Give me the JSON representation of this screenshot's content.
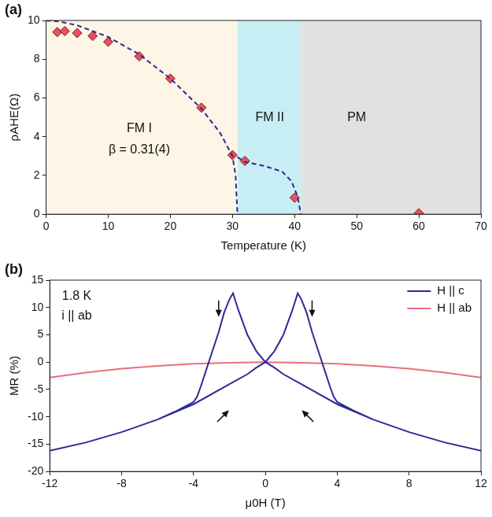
{
  "chart_data": [
    {
      "type": "scatter",
      "panel": "(a)",
      "x_label": "Temperature (K)",
      "y_label": "ρAHE(Ω)",
      "xlim": [
        0,
        70
      ],
      "xticks": [
        0,
        10,
        20,
        30,
        40,
        50,
        60,
        70
      ],
      "ylim": [
        0,
        10
      ],
      "yticks": [
        0,
        2,
        4,
        6,
        8,
        10
      ],
      "grid": false,
      "regions": [
        {
          "from": 0,
          "to": 30.8,
          "color": "#fdf5e6"
        },
        {
          "from": 30.8,
          "to": 41,
          "color": "#c8eef5"
        },
        {
          "from": 41,
          "to": 70,
          "color": "#e1e1e1"
        }
      ],
      "annotations": [
        {
          "text": "FM I",
          "x": 15,
          "y": 4.4
        },
        {
          "text": "β = 0.31(4)",
          "x": 15,
          "y": 3.3
        },
        {
          "text": "FM II",
          "x": 36,
          "y": 5
        },
        {
          "text": "PM",
          "x": 50,
          "y": 5
        }
      ],
      "series": [
        {
          "color": "#2d2a8c",
          "line_style": "dashed",
          "marker": "none",
          "x": [
            0,
            2,
            5,
            10,
            15,
            20,
            25,
            28,
            30,
            30.5,
            30.8
          ],
          "values": [
            10,
            9.95,
            9.75,
            9.15,
            8.25,
            7.0,
            5.45,
            4.2,
            3.0,
            2.0,
            0
          ]
        },
        {
          "color": "#2d2a8c",
          "line_style": "dashed",
          "marker": "none",
          "x": [
            30.8,
            32,
            35,
            38,
            39.5,
            40.5,
            41
          ],
          "values": [
            2.95,
            2.7,
            2.5,
            2.2,
            1.7,
            0.9,
            0
          ]
        },
        {
          "color": "#e8505b",
          "line_style": "none",
          "marker": "diamond",
          "x": [
            1.8,
            3,
            5,
            7.5,
            10,
            15,
            20,
            25,
            30,
            32,
            40,
            60
          ],
          "values": [
            9.4,
            9.45,
            9.35,
            9.2,
            8.9,
            8.15,
            7.0,
            5.5,
            3.05,
            2.75,
            0.85,
            0.05
          ]
        }
      ]
    },
    {
      "type": "line",
      "panel": "(b)",
      "x_label": "μ0H (T)",
      "y_label": "MR (%)",
      "xlim": [
        -12,
        12
      ],
      "xticks": [
        -12,
        -8,
        -4,
        0,
        4,
        8,
        12
      ],
      "ylim": [
        -20,
        15
      ],
      "yticks": [
        -20,
        -15,
        -10,
        -5,
        0,
        5,
        10,
        15
      ],
      "grid": false,
      "legend": "top-right",
      "annotations": [
        {
          "text": "1.8 K",
          "x": -10.5,
          "y": 12
        },
        {
          "text": "i || ab",
          "x": -10.5,
          "y": 8.5
        }
      ],
      "arrows": [
        {
          "x": -2.6,
          "y": 10,
          "direction": "down"
        },
        {
          "x": 2.6,
          "y": 10,
          "direction": "down"
        },
        {
          "x": -2.4,
          "y": -10,
          "direction": "up-right"
        },
        {
          "x": 2.4,
          "y": -10,
          "direction": "up-left"
        }
      ],
      "series": [
        {
          "name": "H || c",
          "color": "#2e2a96",
          "line_style": "solid",
          "marker": "none",
          "x": [
            12,
            10,
            8,
            6,
            4,
            2,
            1,
            0.5,
            0,
            -0.5,
            -1,
            -1.5,
            -1.8,
            -2,
            -2.3,
            -2.6,
            -3,
            -3.3,
            -3.6,
            -3.8,
            -4,
            -5,
            -6,
            -8,
            -10,
            -12,
            -10,
            -8,
            -6,
            -4,
            -2,
            -1,
            -0.5,
            0,
            0.5,
            1,
            1.5,
            1.8,
            2,
            2.3,
            2.6,
            3,
            3.3,
            3.6,
            3.8,
            4,
            5,
            6,
            8,
            10,
            12
          ],
          "values": [
            -16.2,
            -14.7,
            -12.8,
            -10.5,
            -7.7,
            -4,
            -2.2,
            -1,
            0,
            2,
            5,
            9.5,
            12.6,
            11.5,
            9,
            5.5,
            1.5,
            -1.5,
            -4.5,
            -6.3,
            -7.3,
            -9,
            -10.5,
            -12.8,
            -14.7,
            -16.2,
            -14.7,
            -12.8,
            -10.5,
            -7.7,
            -4,
            -2.2,
            -1,
            0,
            2,
            5,
            9.5,
            12.6,
            11.5,
            9,
            5.5,
            1.5,
            -1.5,
            -4.5,
            -6.3,
            -7.3,
            -9,
            -10.5,
            -12.8,
            -14.7,
            -16.2
          ]
        },
        {
          "name": "H || ab",
          "color": "#ea6f7e",
          "line_style": "solid",
          "marker": "none",
          "x": [
            -12,
            -10,
            -8,
            -6,
            -4,
            -2,
            0,
            2,
            4,
            6,
            8,
            10,
            12
          ],
          "values": [
            -2.8,
            -1.9,
            -1.2,
            -0.7,
            -0.3,
            -0.1,
            0,
            -0.1,
            -0.3,
            -0.7,
            -1.2,
            -1.9,
            -2.8
          ]
        }
      ]
    }
  ]
}
